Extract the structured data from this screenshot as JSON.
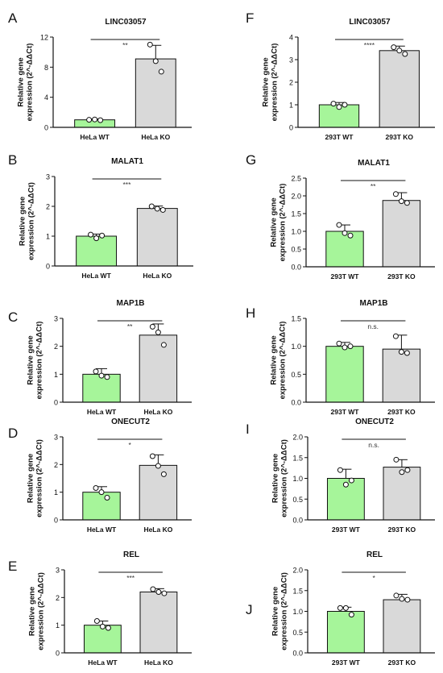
{
  "figure": {
    "colors": {
      "wt_fill": "#a6f59a",
      "ko_fill": "#d9d9d9",
      "stroke": "#111111",
      "point_fill": "#ffffff"
    }
  },
  "chart_data": [
    {
      "panel_letter": "A",
      "type": "bar",
      "title": "LINC03057",
      "ylabel": "Relative gene expression (2^-ΔΔCt)",
      "categories": [
        "HeLa WT",
        "HeLa KO"
      ],
      "values": [
        1.0,
        9.1
      ],
      "errors": [
        0.1,
        1.8
      ],
      "points": [
        [
          1.0,
          1.05,
          0.95
        ],
        [
          11.0,
          8.8,
          7.4
        ]
      ],
      "ylim": [
        0,
        12
      ],
      "yticks": [
        "0",
        "4",
        "8",
        "12"
      ],
      "significance": "**"
    },
    {
      "panel_letter": "B",
      "type": "bar",
      "title": "MALAT1",
      "ylabel": "Relative gene expression (2^-ΔΔCt)",
      "categories": [
        "HeLa WT",
        "HeLa KO"
      ],
      "values": [
        1.0,
        1.93
      ],
      "errors": [
        0.07,
        0.08
      ],
      "points": [
        [
          1.05,
          0.93,
          1.02
        ],
        [
          2.0,
          1.92,
          1.88
        ]
      ],
      "ylim": [
        0,
        3
      ],
      "yticks": [
        "0",
        "1",
        "2",
        "3"
      ],
      "significance": "***"
    },
    {
      "panel_letter": "C",
      "type": "bar",
      "title": "MAP1B",
      "ylabel": "Relative gene expression (2^-ΔΔCt)",
      "categories": [
        "HeLa WT",
        "HeLa KO"
      ],
      "values": [
        1.0,
        2.4
      ],
      "errors": [
        0.2,
        0.4
      ],
      "points": [
        [
          1.1,
          0.95,
          0.9
        ],
        [
          2.7,
          2.5,
          2.05
        ]
      ],
      "ylim": [
        0,
        3
      ],
      "yticks": [
        "0",
        "1",
        "2",
        "3"
      ],
      "significance": "**"
    },
    {
      "panel_letter": "D",
      "type": "bar",
      "title": "ONECUT2",
      "ylabel": "Relative gene expression (2^-ΔΔCt)",
      "categories": [
        "HeLa WT",
        "HeLa KO"
      ],
      "values": [
        1.0,
        1.97
      ],
      "errors": [
        0.2,
        0.38
      ],
      "points": [
        [
          1.15,
          1.0,
          0.8
        ],
        [
          2.3,
          1.95,
          1.65
        ]
      ],
      "ylim": [
        0,
        3
      ],
      "yticks": [
        "0",
        "1",
        "2",
        "3"
      ],
      "significance": "*"
    },
    {
      "panel_letter": "E",
      "type": "bar",
      "title": "REL",
      "ylabel": "Relative gene expression (2^-ΔΔCt)",
      "categories": [
        "HeLa WT",
        "HeLa KO"
      ],
      "values": [
        1.0,
        2.2
      ],
      "errors": [
        0.15,
        0.12
      ],
      "points": [
        [
          1.15,
          0.95,
          0.9
        ],
        [
          2.3,
          2.2,
          2.15
        ]
      ],
      "ylim": [
        0,
        3
      ],
      "yticks": [
        "0",
        "1",
        "2",
        "3"
      ],
      "significance": "***"
    },
    {
      "panel_letter": "F",
      "type": "bar",
      "title": "LINC03057",
      "ylabel": "Relative gene expression (2^-ΔΔCt)",
      "categories": [
        "293T WT",
        "293T KO"
      ],
      "values": [
        1.0,
        3.4
      ],
      "errors": [
        0.1,
        0.2
      ],
      "points": [
        [
          1.05,
          0.9,
          1.0
        ],
        [
          3.55,
          3.4,
          3.25
        ]
      ],
      "ylim": [
        0,
        4
      ],
      "yticks": [
        "0",
        "1",
        "2",
        "3",
        "4"
      ],
      "significance": "****"
    },
    {
      "panel_letter": "G",
      "type": "bar",
      "title": "MALAT1",
      "ylabel": "Relative gene expression (2^-ΔΔCt)",
      "categories": [
        "293T WT",
        "293T KO"
      ],
      "values": [
        1.0,
        1.87
      ],
      "errors": [
        0.18,
        0.22
      ],
      "points": [
        [
          1.18,
          0.95,
          0.88
        ],
        [
          2.05,
          1.85,
          1.8
        ]
      ],
      "ylim": [
        0,
        2.5
      ],
      "yticks": [
        "0.0",
        "0.5",
        "1.0",
        "1.5",
        "2.0",
        "2.5"
      ],
      "significance": "**"
    },
    {
      "panel_letter": "H",
      "type": "bar",
      "title": "MAP1B",
      "ylabel": "Relative gene expression (2^-ΔΔCt)",
      "categories": [
        "293T WT",
        "293T KO"
      ],
      "values": [
        1.0,
        0.95
      ],
      "errors": [
        0.07,
        0.25
      ],
      "points": [
        [
          1.05,
          0.98,
          1.0
        ],
        [
          1.18,
          0.9,
          0.88
        ]
      ],
      "ylim": [
        0,
        1.5
      ],
      "yticks": [
        "0.0",
        "0.5",
        "1.0",
        "1.5"
      ],
      "significance": "n.s."
    },
    {
      "panel_letter": "I",
      "type": "bar",
      "title": "ONECUT2",
      "ylabel": "Relative gene expression (2^-ΔΔCt)",
      "categories": [
        "293T WT",
        "293T KO"
      ],
      "values": [
        1.0,
        1.27
      ],
      "errors": [
        0.22,
        0.18
      ],
      "points": [
        [
          1.2,
          0.85,
          0.95
        ],
        [
          1.45,
          1.15,
          1.2
        ]
      ],
      "ylim": [
        0,
        2.0
      ],
      "yticks": [
        "0.0",
        "0.5",
        "1.0",
        "1.5",
        "2.0"
      ],
      "significance": "n.s."
    },
    {
      "panel_letter": "J",
      "type": "bar",
      "title": "REL",
      "ylabel": "Relative gene expression (2^-ΔΔCt)",
      "categories": [
        "293T WT",
        "293T KO"
      ],
      "values": [
        1.0,
        1.28
      ],
      "errors": [
        0.1,
        0.13
      ],
      "points": [
        [
          1.08,
          1.08,
          0.92
        ],
        [
          1.38,
          1.3,
          1.28
        ]
      ],
      "ylim": [
        0,
        2.0
      ],
      "yticks": [
        "0.0",
        "0.5",
        "1.0",
        "1.5",
        "2.0"
      ],
      "significance": "*"
    }
  ]
}
